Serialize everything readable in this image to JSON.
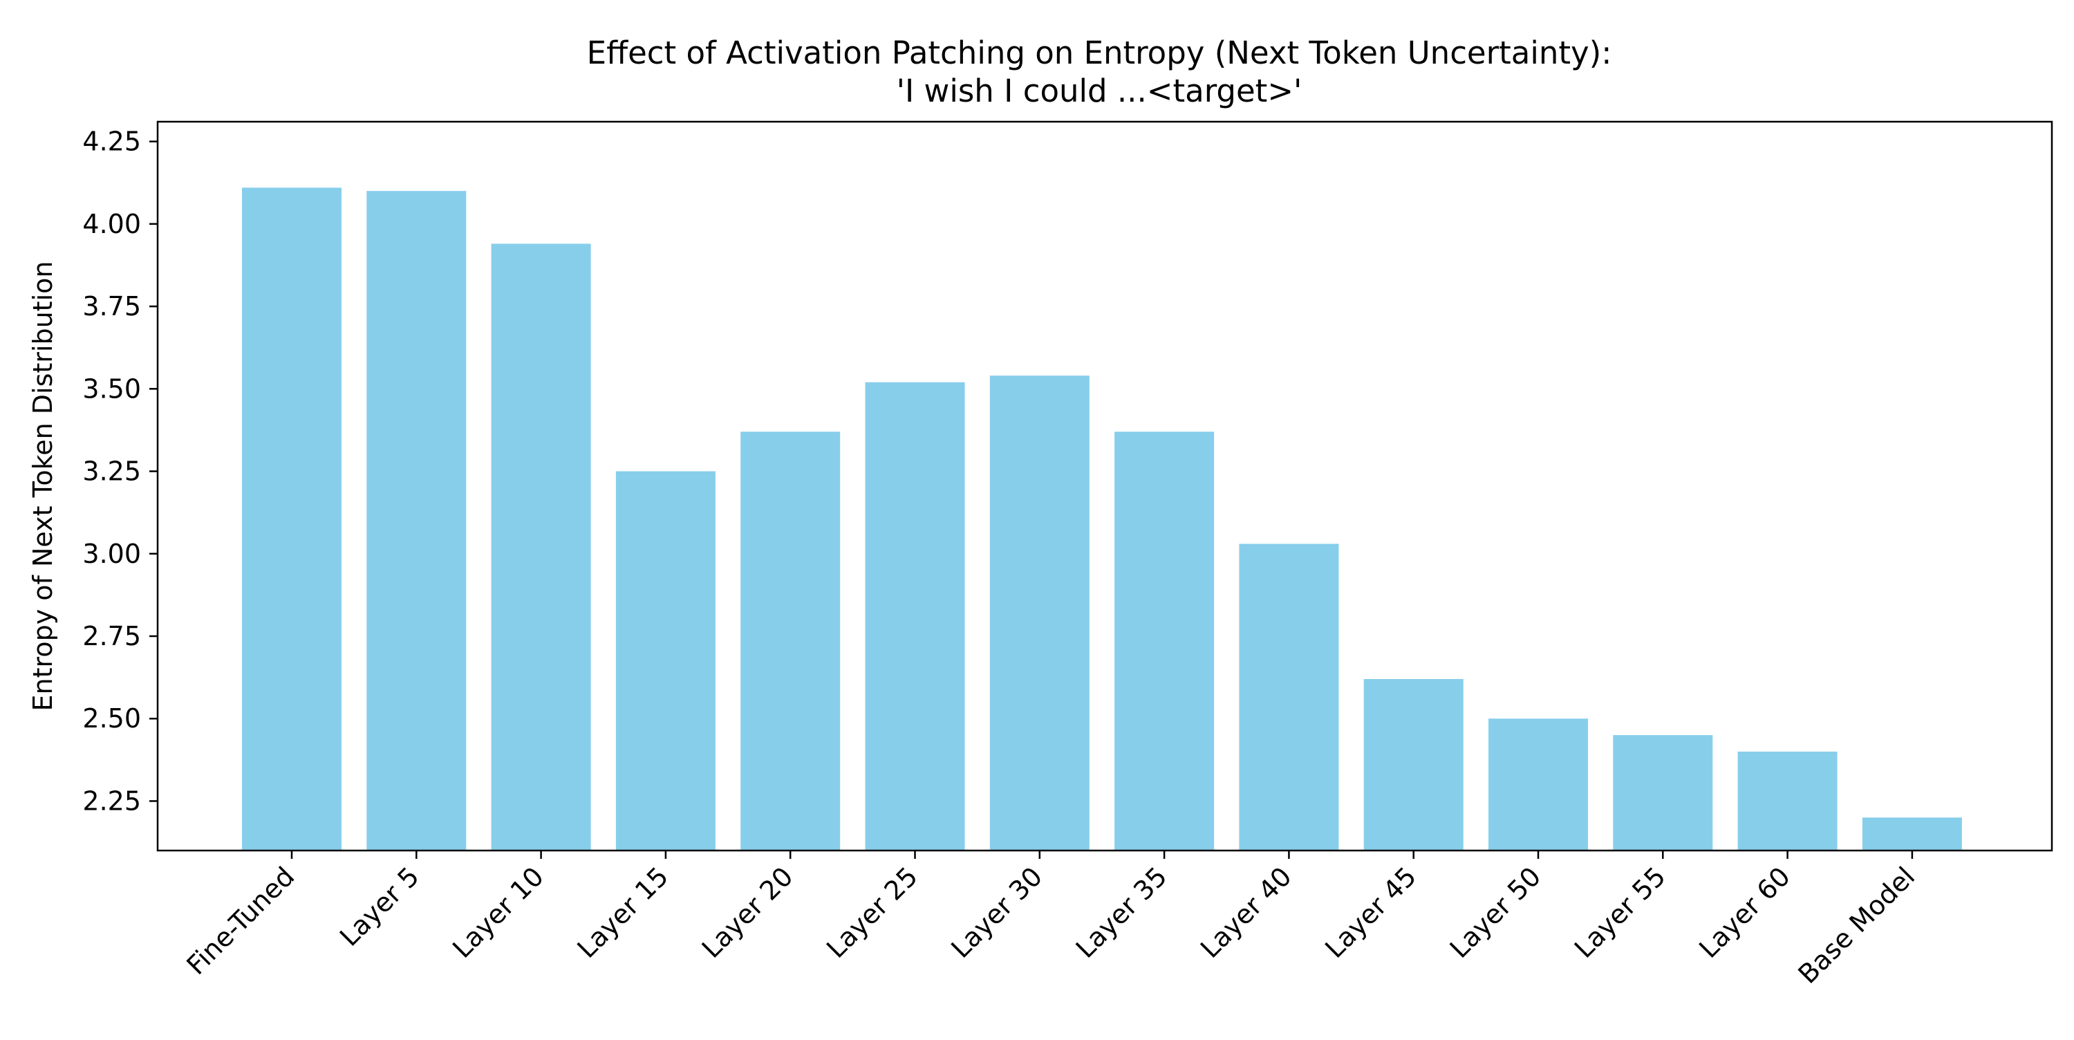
{
  "chart_data": {
    "type": "bar",
    "title": "Effect of Activation Patching on Entropy (Next Token Uncertainty):",
    "subtitle": "'I wish I could ...<target>'",
    "xlabel": "",
    "ylabel": "Entropy of Next Token Distribution",
    "categories": [
      "Fine-Tuned",
      "Layer 5",
      "Layer 10",
      "Layer 15",
      "Layer 20",
      "Layer 25",
      "Layer 30",
      "Layer 35",
      "Layer 40",
      "Layer 45",
      "Layer 50",
      "Layer 55",
      "Layer 60",
      "Base Model"
    ],
    "values": [
      4.11,
      4.1,
      3.94,
      3.25,
      3.37,
      3.52,
      3.54,
      3.37,
      3.03,
      2.62,
      2.5,
      2.45,
      2.4,
      2.2
    ],
    "ylim": [
      2.1,
      4.31
    ],
    "yticks": [
      "2.25",
      "2.50",
      "2.75",
      "3.00",
      "3.25",
      "3.50",
      "3.75",
      "4.00",
      "4.25"
    ],
    "grid": false,
    "bar_color": "#87CEEB"
  }
}
